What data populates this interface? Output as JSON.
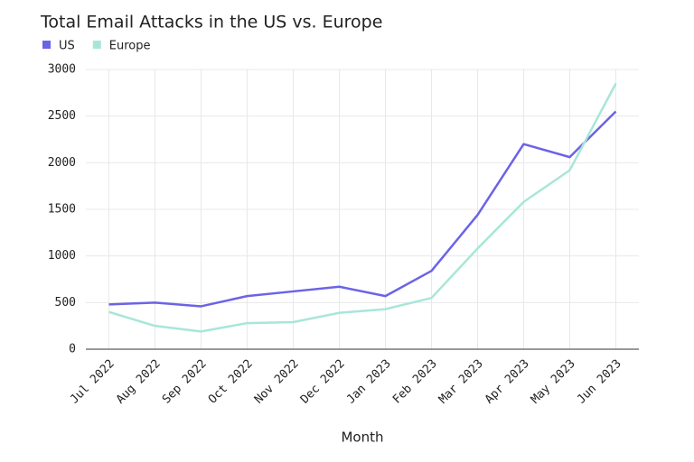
{
  "chart_data": {
    "type": "line",
    "title": "Total Email Attacks in the US vs. Europe",
    "x_label": "Month",
    "categories": [
      "Jul 2022",
      "Aug 2022",
      "Sep 2022",
      "Oct 2022",
      "Nov 2022",
      "Dec 2022",
      "Jan 2023",
      "Feb 2023",
      "Mar 2023",
      "Apr 2023",
      "May 2023",
      "Jun 2023"
    ],
    "series": [
      {
        "name": "US",
        "color": "#6b63e6",
        "values": [
          480,
          500,
          460,
          570,
          620,
          670,
          570,
          840,
          1440,
          2200,
          2060,
          2550
        ]
      },
      {
        "name": "Europe",
        "color": "#a8e6d8",
        "values": [
          400,
          250,
          190,
          280,
          290,
          390,
          430,
          550,
          1080,
          1580,
          1920,
          2850
        ]
      }
    ],
    "ylim": [
      0,
      3000
    ],
    "yticks": [
      0,
      500,
      1000,
      1500,
      2000,
      2500,
      3000
    ],
    "grid": true
  }
}
